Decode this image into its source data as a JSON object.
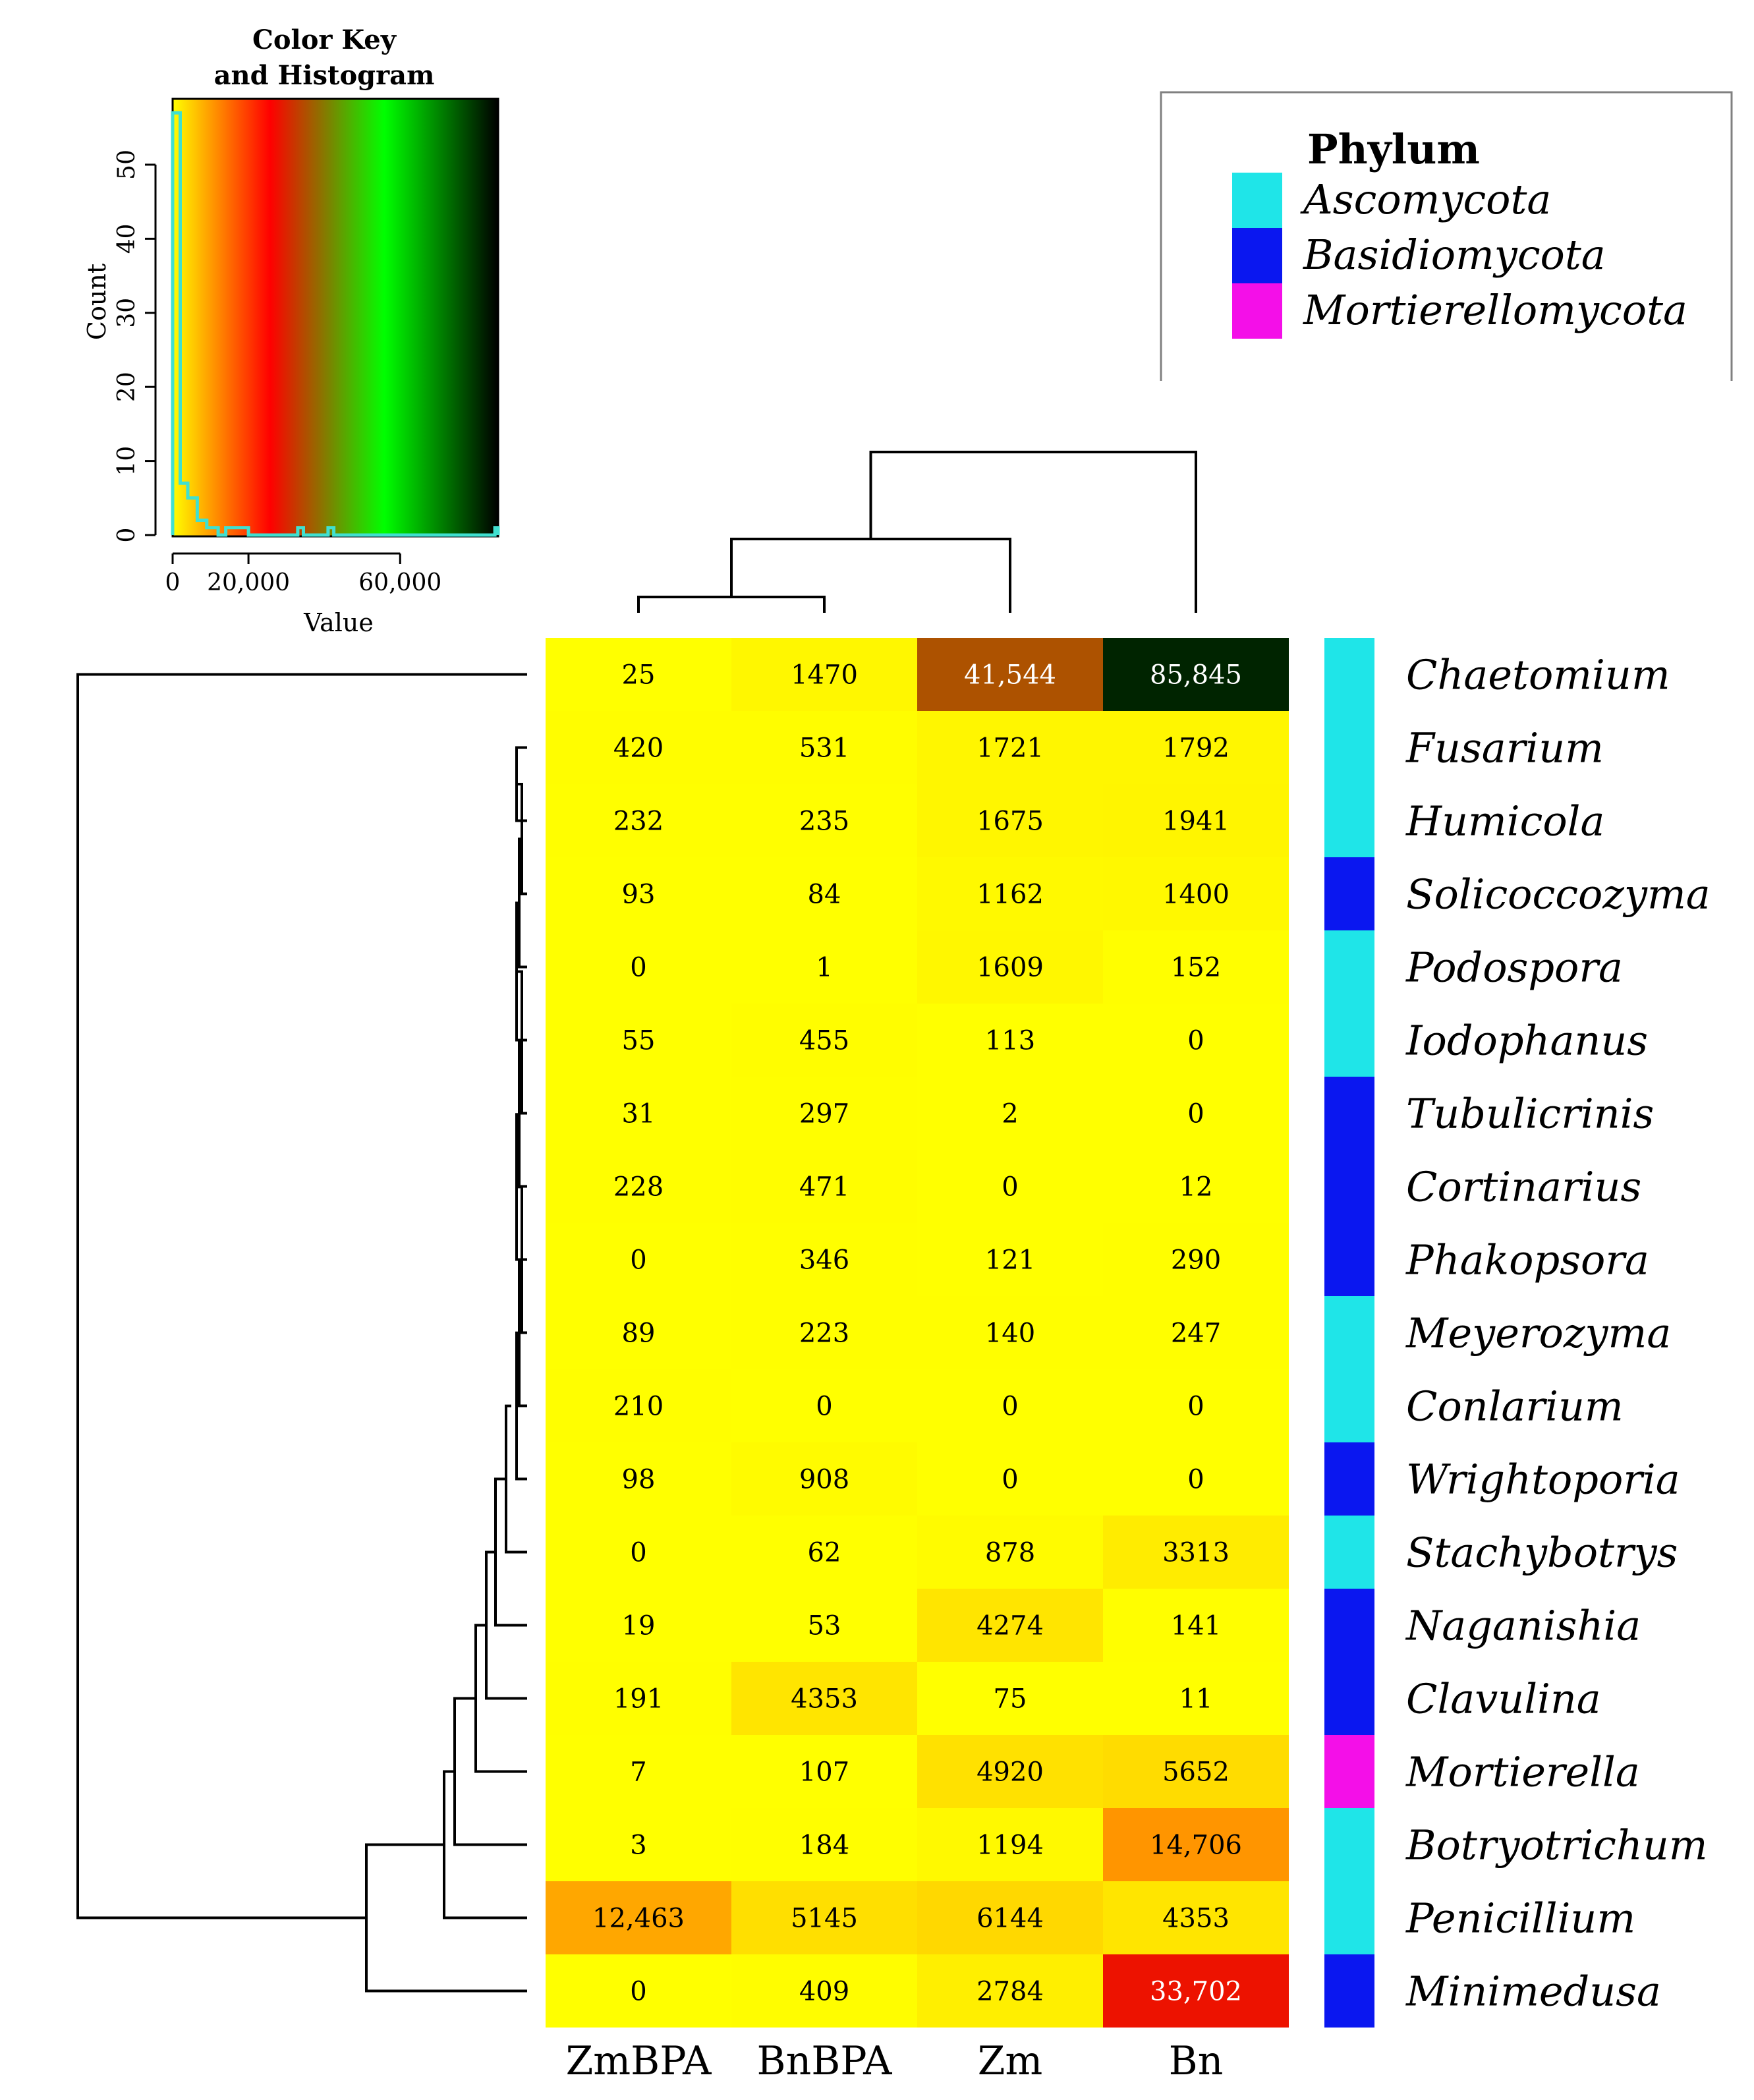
{
  "chart_data": {
    "type": "heatmap",
    "columns": [
      "ZmBPA",
      "BnBPA",
      "Zm",
      "Bn"
    ],
    "rows": [
      {
        "label": "Chaetomium",
        "phylum": "Ascomycota",
        "values": [
          25,
          1470,
          41544,
          85845
        ],
        "display": [
          "25",
          "1470",
          "41,544",
          "85,845"
        ]
      },
      {
        "label": "Fusarium",
        "phylum": "Ascomycota",
        "values": [
          420,
          531,
          1721,
          1792
        ],
        "display": [
          "420",
          "531",
          "1721",
          "1792"
        ]
      },
      {
        "label": "Humicola",
        "phylum": "Ascomycota",
        "values": [
          232,
          235,
          1675,
          1941
        ],
        "display": [
          "232",
          "235",
          "1675",
          "1941"
        ]
      },
      {
        "label": "Solicoccozyma",
        "phylum": "Basidiomycota",
        "values": [
          93,
          84,
          1162,
          1400
        ],
        "display": [
          "93",
          "84",
          "1162",
          "1400"
        ]
      },
      {
        "label": "Podospora",
        "phylum": "Ascomycota",
        "values": [
          0,
          1,
          1609,
          152
        ],
        "display": [
          "0",
          "1",
          "1609",
          "152"
        ]
      },
      {
        "label": "Iodophanus",
        "phylum": "Ascomycota",
        "values": [
          55,
          455,
          113,
          0
        ],
        "display": [
          "55",
          "455",
          "113",
          "0"
        ]
      },
      {
        "label": "Tubulicrinis",
        "phylum": "Basidiomycota",
        "values": [
          31,
          297,
          2,
          0
        ],
        "display": [
          "31",
          "297",
          "2",
          "0"
        ]
      },
      {
        "label": "Cortinarius",
        "phylum": "Basidiomycota",
        "values": [
          228,
          471,
          0,
          12
        ],
        "display": [
          "228",
          "471",
          "0",
          "12"
        ]
      },
      {
        "label": "Phakopsora",
        "phylum": "Basidiomycota",
        "values": [
          0,
          346,
          121,
          290
        ],
        "display": [
          "0",
          "346",
          "121",
          "290"
        ]
      },
      {
        "label": "Meyerozyma",
        "phylum": "Ascomycota",
        "values": [
          89,
          223,
          140,
          247
        ],
        "display": [
          "89",
          "223",
          "140",
          "247"
        ]
      },
      {
        "label": "Conlarium",
        "phylum": "Ascomycota",
        "values": [
          210,
          0,
          0,
          0
        ],
        "display": [
          "210",
          "0",
          "0",
          "0"
        ]
      },
      {
        "label": "Wrightoporia",
        "phylum": "Basidiomycota",
        "values": [
          98,
          908,
          0,
          0
        ],
        "display": [
          "98",
          "908",
          "0",
          "0"
        ]
      },
      {
        "label": "Stachybotrys",
        "phylum": "Ascomycota",
        "values": [
          0,
          62,
          878,
          3313
        ],
        "display": [
          "0",
          "62",
          "878",
          "3313"
        ]
      },
      {
        "label": "Naganishia",
        "phylum": "Basidiomycota",
        "values": [
          19,
          53,
          4274,
          141
        ],
        "display": [
          "19",
          "53",
          "4274",
          "141"
        ]
      },
      {
        "label": "Clavulina",
        "phylum": "Basidiomycota",
        "values": [
          191,
          4353,
          75,
          11
        ],
        "display": [
          "191",
          "4353",
          "75",
          "11"
        ]
      },
      {
        "label": "Mortierella",
        "phylum": "Mortierellomycota",
        "values": [
          7,
          107,
          4920,
          5652
        ],
        "display": [
          "7",
          "107",
          "4920",
          "5652"
        ]
      },
      {
        "label": "Botryotrichum",
        "phylum": "Ascomycota",
        "values": [
          3,
          184,
          1194,
          14706
        ],
        "display": [
          "3",
          "184",
          "1194",
          "14,706"
        ]
      },
      {
        "label": "Penicillium",
        "phylum": "Ascomycota",
        "values": [
          12463,
          5145,
          6144,
          4353
        ],
        "display": [
          "12,463",
          "5145",
          "6144",
          "4353"
        ]
      },
      {
        "label": "Minimedusa",
        "phylum": "Basidiomycota",
        "values": [
          0,
          409,
          2784,
          33702
        ],
        "display": [
          "0",
          "409",
          "2784",
          "33,702"
        ]
      }
    ],
    "legend": {
      "title": "Phylum",
      "items": [
        {
          "name": "Ascomycota",
          "color": "#1fe5e8"
        },
        {
          "name": "Basidiomycota",
          "color": "#0a17f0"
        },
        {
          "name": "Mortierellomycota",
          "color": "#f40fe8"
        }
      ]
    },
    "color_key": {
      "title_lines": [
        "Color Key",
        "and Histogram"
      ],
      "xlabel": "Value",
      "ylabel": "Count",
      "x_range": [
        0,
        85845
      ],
      "x_ticks": [
        0,
        20000,
        60000
      ],
      "x_tick_labels": [
        "0",
        "20,000",
        "60,000"
      ],
      "y_range": [
        0,
        58
      ],
      "y_ticks": [
        0,
        10,
        20,
        30,
        40,
        50
      ],
      "y_tick_labels": [
        "0",
        "10",
        "20",
        "30",
        "40",
        "50"
      ],
      "gradient_stops": [
        {
          "value": 0,
          "color": "#ffff00"
        },
        {
          "value": 0.3,
          "color": "#ff0000"
        },
        {
          "value": 0.65,
          "color": "#00ff00"
        },
        {
          "value": 1,
          "color": "#000000"
        }
      ],
      "histogram_color": "#40e0d0"
    }
  }
}
